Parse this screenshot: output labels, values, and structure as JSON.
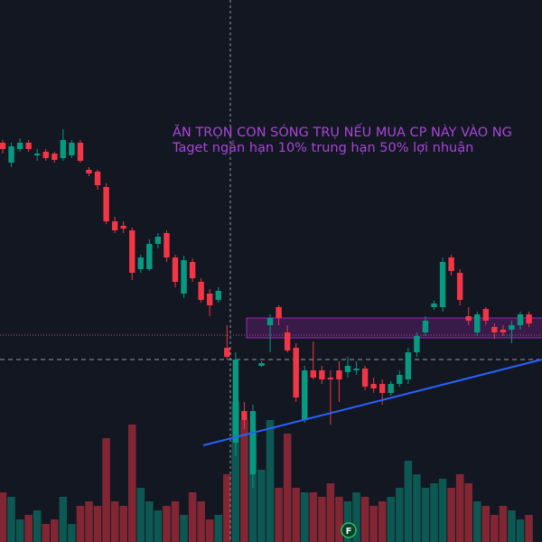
{
  "chart_data": {
    "type": "candlestick",
    "annotations": [
      "ĂN TRỌN CON SÓNG TRỤ NẾU MUA CP NÀY VÀO NG",
      "Taget ngắn hạn 10% trung hạn 50% lợi nhuận"
    ],
    "marker_label": "F",
    "up_color": "#089981",
    "down_color": "#f23645",
    "ylim": [
      0,
      600
    ],
    "y2lim": [
      0,
      600
    ],
    "open": [
      442,
      420,
      435,
      442,
      428,
      432,
      430,
      425,
      428,
      442,
      412,
      410,
      393,
      355,
      350,
      345,
      302,
      302,
      330,
      342,
      315,
      275,
      310,
      288,
      275,
      268,
      215,
      110,
      145,
      75,
      195,
      240,
      260,
      232,
      215,
      135,
      190,
      190,
      182,
      190,
      188,
      190,
      192,
      175,
      175,
      165,
      175,
      180,
      210,
      232,
      260,
      260,
      315,
      298,
      250,
      232,
      258,
      238,
      235,
      235,
      240,
      252
    ],
    "high": [
      445,
      442,
      447,
      445,
      435,
      435,
      432,
      457,
      445,
      445,
      415,
      412,
      397,
      360,
      355,
      348,
      318,
      335,
      342,
      345,
      318,
      317,
      314,
      292,
      280,
      282,
      240,
      210,
      155,
      152,
      200,
      252,
      262,
      240,
      220,
      195,
      222,
      195,
      190,
      200,
      205,
      200,
      195,
      182,
      180,
      178,
      190,
      215,
      232,
      250,
      267,
      315,
      318,
      302,
      260,
      255,
      260,
      242,
      240,
      245,
      255,
      255
    ],
    "low": [
      430,
      415,
      432,
      432,
      422,
      422,
      420,
      422,
      425,
      420,
      405,
      390,
      352,
      342,
      342,
      290,
      298,
      300,
      325,
      310,
      282,
      270,
      288,
      265,
      250,
      265,
      202,
      95,
      125,
      60,
      194,
      210,
      240,
      210,
      155,
      132,
      180,
      175,
      130,
      155,
      182,
      185,
      168,
      165,
      152,
      162,
      172,
      175,
      205,
      228,
      257,
      255,
      295,
      262,
      240,
      228,
      240,
      225,
      228,
      220,
      235,
      238
    ],
    "close": [
      435,
      438,
      442,
      435,
      430,
      425,
      423,
      445,
      442,
      422,
      408,
      395,
      355,
      345,
      347,
      298,
      315,
      330,
      338,
      315,
      288,
      312,
      292,
      268,
      262,
      278,
      205,
      202,
      135,
      145,
      198,
      248,
      248,
      212,
      160,
      190,
      182,
      180,
      180,
      180,
      195,
      192,
      172,
      170,
      165,
      175,
      185,
      210,
      228,
      245,
      264,
      310,
      300,
      268,
      245,
      252,
      245,
      232,
      232,
      240,
      252,
      242
    ],
    "volume": [
      55,
      50,
      25,
      30,
      35,
      20,
      25,
      50,
      20,
      40,
      45,
      40,
      115,
      45,
      40,
      130,
      60,
      45,
      35,
      40,
      45,
      30,
      55,
      45,
      25,
      30,
      75,
      155,
      135,
      120,
      80,
      135,
      60,
      120,
      60,
      55,
      55,
      50,
      65,
      50,
      45,
      55,
      50,
      40,
      45,
      50,
      60,
      90,
      75,
      60,
      65,
      70,
      60,
      75,
      65,
      45,
      40,
      30,
      40,
      35,
      25,
      30
    ]
  }
}
